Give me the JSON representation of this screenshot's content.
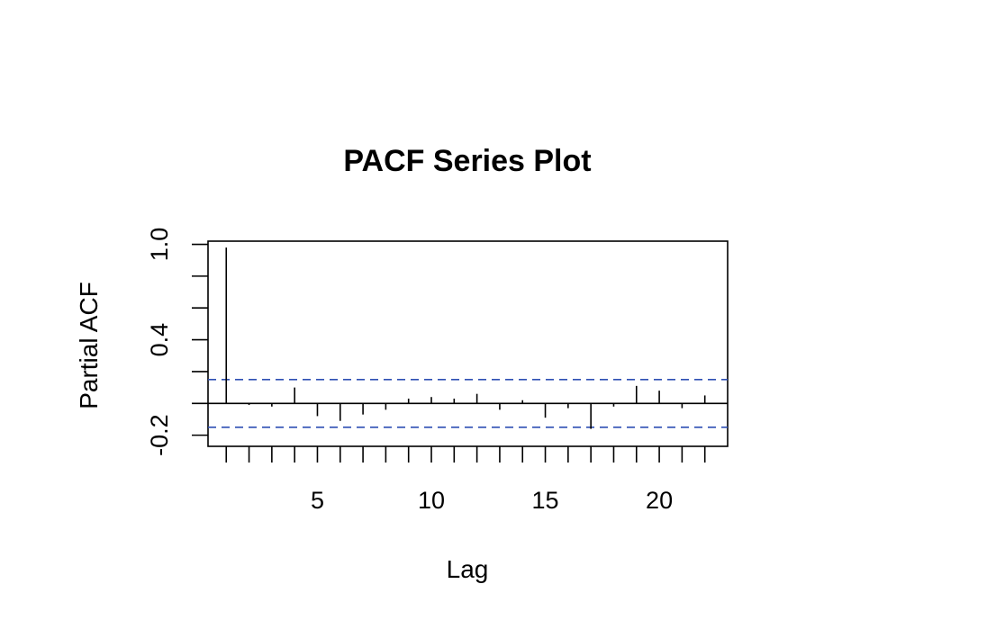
{
  "chart_data": {
    "type": "bar",
    "title": "PACF Series Plot",
    "xlabel": "Lag",
    "ylabel": "Partial ACF",
    "xlim": [
      0.2,
      23
    ],
    "ylim": [
      -0.27,
      1.02
    ],
    "x_major_ticks": [
      5,
      10,
      15,
      20
    ],
    "x_minor_ticks": [
      1,
      2,
      3,
      4,
      6,
      7,
      8,
      9,
      11,
      12,
      13,
      14,
      16,
      17,
      18,
      19,
      21,
      22
    ],
    "y_ticks": [
      -0.2,
      0.0,
      0.2,
      0.4,
      0.6,
      0.8,
      1.0
    ],
    "y_tick_labels": [
      {
        "value": -0.2,
        "label": "-0.2"
      },
      {
        "value": 0.4,
        "label": "0.4"
      },
      {
        "value": 1.0,
        "label": "1.0"
      }
    ],
    "x_tick_labels": [
      {
        "value": 5,
        "label": "5"
      },
      {
        "value": 10,
        "label": "10"
      },
      {
        "value": 15,
        "label": "15"
      },
      {
        "value": 20,
        "label": "20"
      }
    ],
    "confidence_limits": [
      0.15,
      -0.15
    ],
    "confidence_color": "#2E4FB3",
    "bar_color": "#000000",
    "grid": false,
    "legend": false,
    "lags": [
      1,
      2,
      3,
      4,
      5,
      6,
      7,
      8,
      9,
      10,
      11,
      12,
      13,
      14,
      15,
      16,
      17,
      18,
      19,
      20,
      21,
      22
    ],
    "values": [
      0.98,
      -0.01,
      -0.02,
      0.1,
      -0.08,
      -0.11,
      -0.07,
      -0.04,
      0.03,
      0.04,
      0.03,
      0.06,
      -0.04,
      0.02,
      -0.09,
      -0.03,
      -0.16,
      -0.02,
      0.11,
      0.08,
      -0.03,
      0.05
    ]
  }
}
